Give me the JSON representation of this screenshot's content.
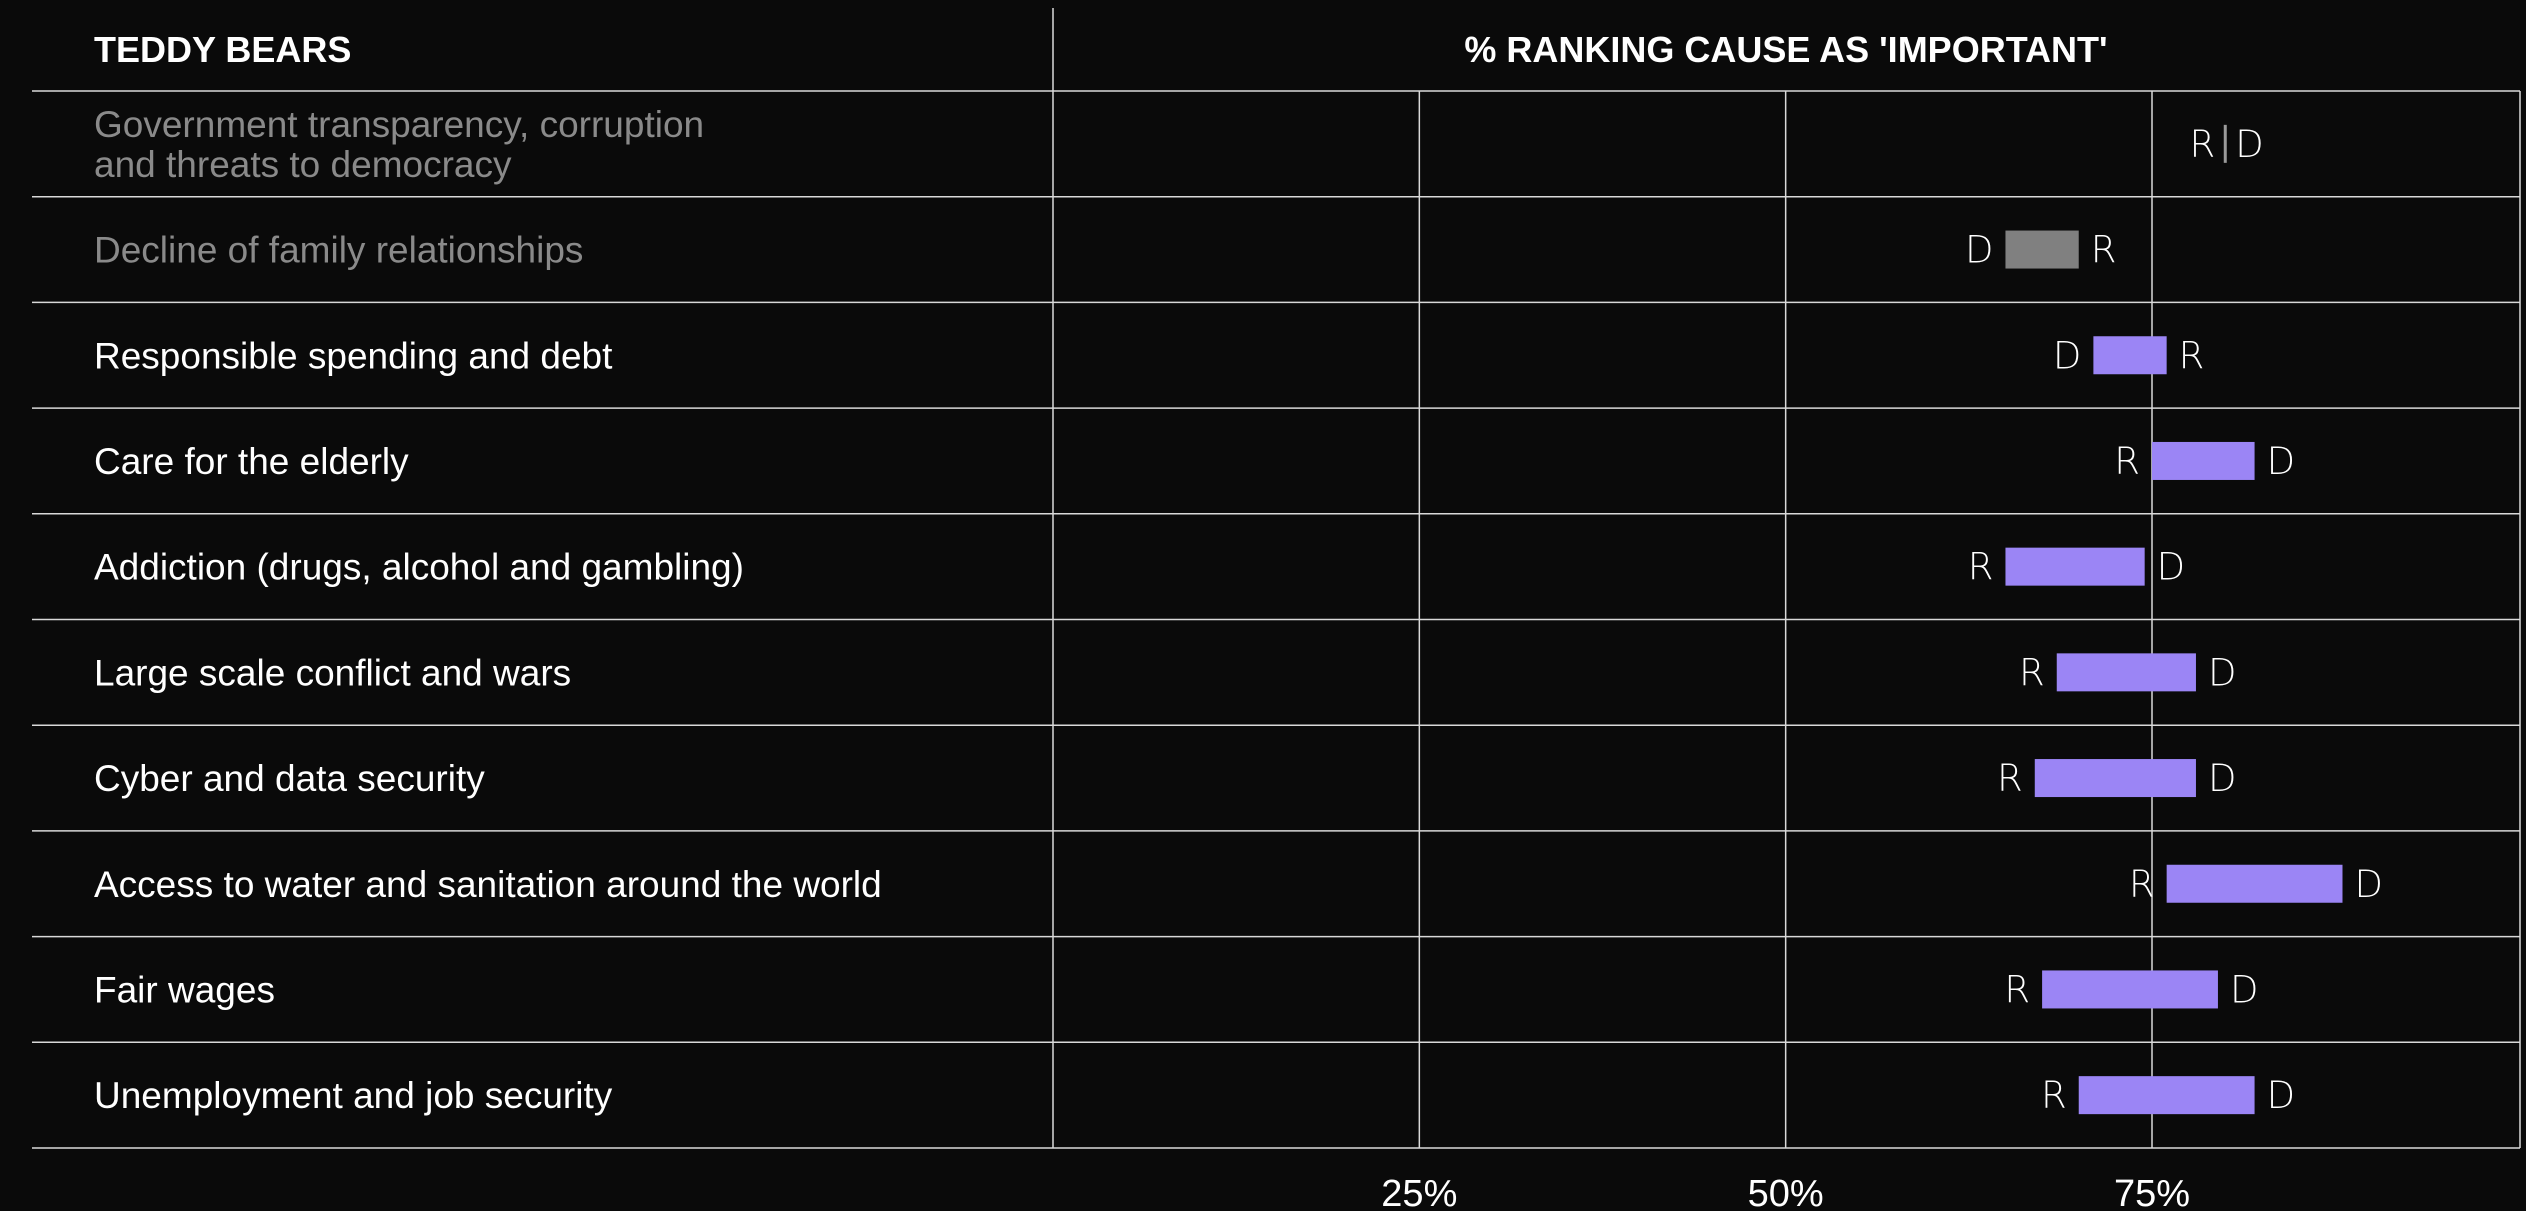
{
  "chart_data": {
    "type": "dumbbell-range",
    "header_left": "TEDDY BEARS",
    "title": "% RANKING CAUSE AS 'IMPORTANT'",
    "x_ticks": [
      25,
      50,
      75
    ],
    "x_tick_labels": [
      "25%",
      "50%",
      "75%"
    ],
    "xlim": [
      0,
      100
    ],
    "series": [
      {
        "name": "R"
      },
      {
        "name": "D"
      }
    ],
    "colors": {
      "background": "#0a0a0a",
      "highlight_bar": "#9b85f5",
      "muted_bar": "#808080",
      "muted_text": "#8a8a8a",
      "text": "#ffffff",
      "grid": "#d9d9d9"
    },
    "rows": [
      {
        "label": [
          "Government transparency, corruption",
          "and threats to democracy"
        ],
        "R": 80,
        "D": 80,
        "muted": true
      },
      {
        "label": [
          "Decline of family relationships"
        ],
        "R": 70,
        "D": 65,
        "muted": true
      },
      {
        "label": [
          "Responsible spending and debt"
        ],
        "R": 76,
        "D": 71,
        "muted": false
      },
      {
        "label": [
          "Care for the elderly"
        ],
        "R": 75,
        "D": 82,
        "muted": false
      },
      {
        "label": [
          "Addiction (drugs, alcohol and gambling)"
        ],
        "R": 65,
        "D": 74.5,
        "muted": false
      },
      {
        "label": [
          "Large scale conflict and wars"
        ],
        "R": 68.5,
        "D": 78,
        "muted": false
      },
      {
        "label": [
          "Cyber and data security"
        ],
        "R": 67,
        "D": 78,
        "muted": false
      },
      {
        "label": [
          "Access to water and sanitation around the world"
        ],
        "R": 76,
        "D": 88,
        "muted": false
      },
      {
        "label": [
          "Fair wages"
        ],
        "R": 67.5,
        "D": 79.5,
        "muted": false
      },
      {
        "label": [
          "Unemployment and job security"
        ],
        "R": 70,
        "D": 82,
        "muted": false
      }
    ]
  }
}
